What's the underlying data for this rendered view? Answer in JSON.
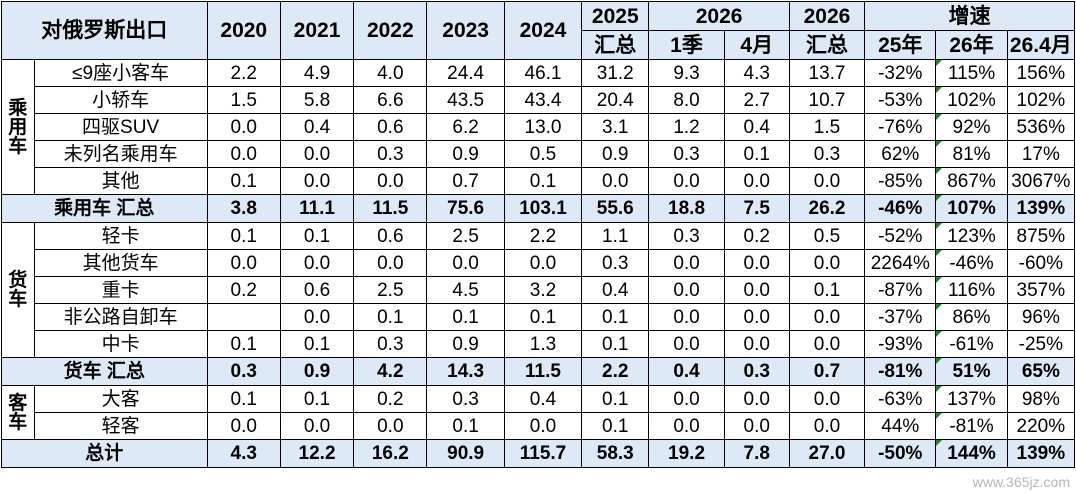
{
  "header": {
    "title": "对俄罗斯出口",
    "years": [
      "2020",
      "2021",
      "2022",
      "2023",
      "2024"
    ],
    "y2025": "2025",
    "summary": "汇总",
    "y2026": "2026",
    "q1": "1季",
    "apr": "4月",
    "growth": "增速",
    "g25": "25年",
    "g26": "26年",
    "g264": "26.4月"
  },
  "groups": {
    "passenger": "乘用车",
    "truck": "货车",
    "bus": "客车"
  },
  "rows": [
    {
      "name": "≤9座小客车",
      "v": [
        "2.2",
        "4.9",
        "4.0",
        "24.4",
        "46.1",
        "31.2",
        "9.3",
        "4.3",
        "13.7",
        "-32%",
        "115%",
        "156%"
      ]
    },
    {
      "name": "小轿车",
      "v": [
        "1.5",
        "5.8",
        "6.6",
        "43.5",
        "43.4",
        "20.4",
        "8.0",
        "2.7",
        "10.7",
        "-53%",
        "102%",
        "102%"
      ]
    },
    {
      "name": "四驱SUV",
      "v": [
        "0.0",
        "0.4",
        "0.6",
        "6.2",
        "13.0",
        "3.1",
        "1.2",
        "0.4",
        "1.5",
        "-76%",
        "92%",
        "536%"
      ]
    },
    {
      "name": "未列名乘用车",
      "v": [
        "0.0",
        "0.0",
        "0.3",
        "0.9",
        "0.5",
        "0.9",
        "0.3",
        "0.1",
        "0.3",
        "62%",
        "81%",
        "17%"
      ]
    },
    {
      "name": "其他",
      "v": [
        "0.1",
        "0.0",
        "0.0",
        "0.7",
        "0.1",
        "0.0",
        "0.0",
        "0.0",
        "0.0",
        "-85%",
        "867%",
        "3067%"
      ]
    },
    {
      "name": "乘用车 汇总",
      "v": [
        "3.8",
        "11.1",
        "11.5",
        "75.6",
        "103.1",
        "55.6",
        "18.8",
        "7.5",
        "26.2",
        "-46%",
        "107%",
        "139%"
      ]
    },
    {
      "name": "轻卡",
      "v": [
        "0.1",
        "0.1",
        "0.6",
        "2.5",
        "2.2",
        "1.1",
        "0.3",
        "0.2",
        "0.5",
        "-52%",
        "123%",
        "875%"
      ]
    },
    {
      "name": "其他货车",
      "v": [
        "0.0",
        "0.0",
        "0.0",
        "0.0",
        "0.0",
        "0.3",
        "0.0",
        "0.0",
        "0.0",
        "2264%",
        "-46%",
        "-60%"
      ]
    },
    {
      "name": "重卡",
      "v": [
        "0.2",
        "0.6",
        "2.5",
        "4.5",
        "3.2",
        "0.4",
        "0.0",
        "0.0",
        "0.1",
        "-87%",
        "116%",
        "357%"
      ]
    },
    {
      "name": "非公路自卸车",
      "v": [
        "",
        "0.0",
        "0.1",
        "0.1",
        "0.1",
        "0.1",
        "0.0",
        "0.0",
        "0.0",
        "-37%",
        "86%",
        "96%"
      ]
    },
    {
      "name": "中卡",
      "v": [
        "0.1",
        "0.1",
        "0.3",
        "0.9",
        "1.3",
        "0.1",
        "0.0",
        "0.0",
        "0.0",
        "-93%",
        "-61%",
        "-25%"
      ]
    },
    {
      "name": "货车 汇总",
      "v": [
        "0.3",
        "0.9",
        "4.2",
        "14.3",
        "11.5",
        "2.2",
        "0.4",
        "0.3",
        "0.7",
        "-81%",
        "51%",
        "65%"
      ]
    },
    {
      "name": "大客",
      "v": [
        "0.1",
        "0.1",
        "0.2",
        "0.3",
        "0.4",
        "0.1",
        "0.0",
        "0.0",
        "0.0",
        "-63%",
        "137%",
        "98%"
      ]
    },
    {
      "name": "轻客",
      "v": [
        "0.0",
        "0.0",
        "0.0",
        "0.1",
        "0.0",
        "0.1",
        "0.0",
        "0.0",
        "0.0",
        "44%",
        "-81%",
        "220%"
      ]
    },
    {
      "name": "总计",
      "v": [
        "4.3",
        "12.2",
        "16.2",
        "90.9",
        "115.7",
        "58.3",
        "19.2",
        "7.8",
        "27.0",
        "-50%",
        "144%",
        "139%"
      ]
    }
  ],
  "watermark": "www.365jz.com",
  "colors": {
    "header_bg": "#dde9f6",
    "highlight": "#ff0000",
    "marker": "#1a8a1a"
  }
}
